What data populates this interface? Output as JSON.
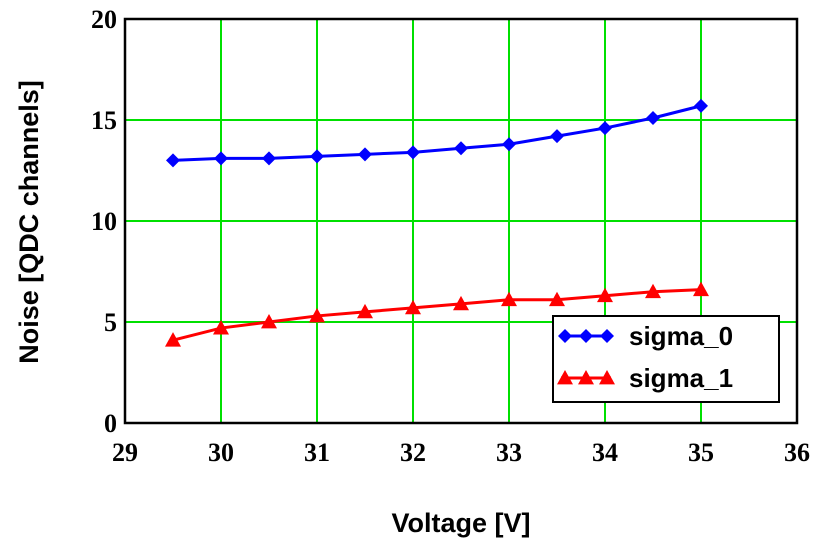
{
  "chart_data": {
    "type": "line",
    "xlabel": "Voltage [V]",
    "ylabel": "Noise [QDC channels]",
    "xlim": [
      29,
      36
    ],
    "ylim": [
      0,
      20
    ],
    "xticks": [
      "29",
      "30",
      "31",
      "32",
      "33",
      "34",
      "35",
      "36"
    ],
    "yticks": [
      "0",
      "5",
      "10",
      "15",
      "20"
    ],
    "grid": true,
    "legend_position": "bottom-right",
    "x": [
      29.5,
      30,
      30.5,
      31,
      31.5,
      32,
      32.5,
      33,
      33.5,
      34,
      34.5,
      35
    ],
    "series": [
      {
        "name": "sigma_0",
        "color": "#0000ff",
        "marker": "diamond",
        "values": [
          13.0,
          13.1,
          13.1,
          13.2,
          13.3,
          13.4,
          13.6,
          13.8,
          14.2,
          14.6,
          15.1,
          15.7
        ]
      },
      {
        "name": "sigma_1",
        "color": "#ff0000",
        "marker": "triangle",
        "values": [
          4.1,
          4.7,
          5.0,
          5.3,
          5.5,
          5.7,
          5.9,
          6.1,
          6.1,
          6.3,
          6.5,
          6.6
        ]
      }
    ]
  },
  "colors": {
    "grid": "#00e000",
    "frame": "#000000"
  }
}
